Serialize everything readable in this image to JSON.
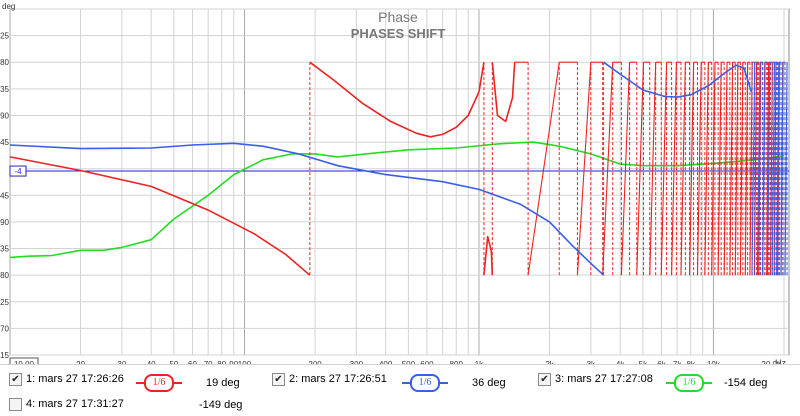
{
  "window": {
    "title": "Phase",
    "subtitle": "PHASES SHIFT"
  },
  "chart_data": {
    "type": "line",
    "title": "Phase",
    "subtitle": "PHASES SHIFT",
    "ylabel": "deg",
    "xunit": "Hz",
    "xscale": "log",
    "xlim": [
      10,
      21000
    ],
    "ylim": [
      -315,
      270
    ],
    "grid": true,
    "legend_placement": "bottom",
    "y_ticks": [
      -315,
      -270,
      -225,
      -180,
      -135,
      -90,
      -45,
      45,
      90,
      135,
      180,
      225
    ],
    "reference_line": {
      "value": -4,
      "label": "-4"
    },
    "x_tick_labels": [
      {
        "value": 10,
        "label": "10,00",
        "boxed": true
      },
      {
        "value": 20,
        "label": "20"
      },
      {
        "value": 30,
        "label": "30"
      },
      {
        "value": 40,
        "label": "40"
      },
      {
        "value": 50,
        "label": "50"
      },
      {
        "value": 60,
        "label": "60"
      },
      {
        "value": 70,
        "label": "70"
      },
      {
        "value": 80,
        "label": "80"
      },
      {
        "value": 90,
        "label": "90"
      },
      {
        "value": 100,
        "label": "100"
      },
      {
        "value": 200,
        "label": "200"
      },
      {
        "value": 300,
        "label": "300"
      },
      {
        "value": 400,
        "label": "400"
      },
      {
        "value": 500,
        "label": "500"
      },
      {
        "value": 600,
        "label": "600"
      },
      {
        "value": 800,
        "label": "800"
      },
      {
        "value": 1000,
        "label": "1k"
      },
      {
        "value": 2000,
        "label": "2k"
      },
      {
        "value": 3000,
        "label": "3k"
      },
      {
        "value": 4000,
        "label": "4k"
      },
      {
        "value": 5000,
        "label": "5k"
      },
      {
        "value": 6000,
        "label": "6k"
      },
      {
        "value": 7000,
        "label": "7k"
      },
      {
        "value": 8000,
        "label": "8k"
      },
      {
        "value": 10000,
        "label": "10k"
      },
      {
        "value": 20000,
        "label": "20,0k"
      }
    ],
    "series": [
      {
        "color": "#ee2222",
        "points": [
          [
            10,
            20
          ],
          [
            20,
            -3
          ],
          [
            40,
            -30
          ],
          [
            70,
            -70
          ],
          [
            110,
            -110
          ],
          [
            150,
            -145
          ],
          [
            190,
            -180
          ],
          [
            190,
            180
          ],
          [
            240,
            150
          ],
          [
            320,
            110
          ],
          [
            420,
            80
          ],
          [
            540,
            60
          ],
          [
            620,
            54
          ],
          [
            700,
            58
          ],
          [
            800,
            70
          ],
          [
            900,
            90
          ],
          [
            1000,
            130
          ],
          [
            1050,
            180
          ],
          [
            1050,
            -180
          ],
          [
            1090,
            -115
          ],
          [
            1130,
            -140
          ],
          [
            1140,
            -180
          ],
          [
            1140,
            180
          ],
          [
            1200,
            90
          ],
          [
            1300,
            80
          ],
          [
            1390,
            120
          ],
          [
            1420,
            180
          ]
        ],
        "wrap_frequencies": [
          1620,
          2200,
          2630,
          3000,
          3370,
          3720,
          4050,
          4390,
          4710,
          5030,
          5350,
          5670,
          5990,
          6310,
          6630,
          6950,
          7270,
          7590,
          7910,
          8230,
          8550,
          8870,
          9190,
          9510,
          9830,
          10150,
          10470,
          10790,
          11110,
          11430,
          11750,
          12070,
          12390,
          12710,
          13030,
          13350,
          13670,
          13990,
          14310,
          14630,
          14950,
          15270,
          15590,
          15910,
          16230,
          16550,
          16870,
          17190,
          17510,
          17830,
          18150,
          18470,
          18790,
          19110,
          19430,
          19750
        ]
      },
      {
        "color": "#3a5ee6",
        "points": [
          [
            10,
            40
          ],
          [
            20,
            34
          ],
          [
            40,
            35
          ],
          [
            60,
            40
          ],
          [
            90,
            43
          ],
          [
            120,
            38
          ],
          [
            170,
            25
          ],
          [
            250,
            5
          ],
          [
            400,
            -10
          ],
          [
            700,
            -22
          ],
          [
            1000,
            -35
          ],
          [
            1500,
            -60
          ],
          [
            2000,
            -90
          ],
          [
            2500,
            -130
          ],
          [
            3000,
            -160
          ],
          [
            3400,
            -180
          ],
          [
            3400,
            180
          ],
          [
            4000,
            160
          ],
          [
            5000,
            133
          ],
          [
            6200,
            122
          ],
          [
            7000,
            121
          ],
          [
            8000,
            125
          ],
          [
            9500,
            140
          ],
          [
            11000,
            160
          ],
          [
            12500,
            175
          ],
          [
            13500,
            170
          ],
          [
            14500,
            130
          ]
        ],
        "wrap_frequencies": [
          14600,
          15000,
          15400,
          15800,
          16200,
          16600,
          17000,
          17400,
          17800,
          18200,
          18600,
          19000,
          19400,
          19800,
          20200,
          20600
        ]
      },
      {
        "color": "#22dd22",
        "points": [
          [
            10,
            -150
          ],
          [
            12,
            -148
          ],
          [
            15,
            -147
          ],
          [
            20,
            -138
          ],
          [
            25,
            -138
          ],
          [
            30,
            -133
          ],
          [
            40,
            -120
          ],
          [
            50,
            -85
          ],
          [
            70,
            -45
          ],
          [
            90,
            -10
          ],
          [
            120,
            15
          ],
          [
            160,
            25
          ],
          [
            200,
            25
          ],
          [
            250,
            20
          ],
          [
            330,
            25
          ],
          [
            500,
            32
          ],
          [
            800,
            35
          ],
          [
            1200,
            42
          ],
          [
            1700,
            45
          ],
          [
            2200,
            38
          ],
          [
            3000,
            25
          ],
          [
            4000,
            8
          ],
          [
            5000,
            5
          ],
          [
            7000,
            5
          ],
          [
            10000,
            9
          ],
          [
            15000,
            15
          ],
          [
            20000,
            22
          ]
        ]
      }
    ],
    "legend": [
      {
        "id": 1,
        "label": "1: mars 27 17:26:26",
        "smoothing": "1/6",
        "value_text": "19 deg",
        "checked": true,
        "color": "#ee2222"
      },
      {
        "id": 2,
        "label": "2: mars 27 17:26:51",
        "smoothing": "1/6",
        "value_text": "36 deg",
        "checked": true,
        "color": "#3a5ee6"
      },
      {
        "id": 3,
        "label": "3: mars 27 17:27:08",
        "smoothing": "1/6",
        "value_text": "-154 deg",
        "checked": true,
        "color": "#22dd22"
      },
      {
        "id": 4,
        "label": "4: mars 27 17:31:27",
        "value_text": "-149 deg",
        "checked": false,
        "color": "#22dd22"
      }
    ]
  }
}
